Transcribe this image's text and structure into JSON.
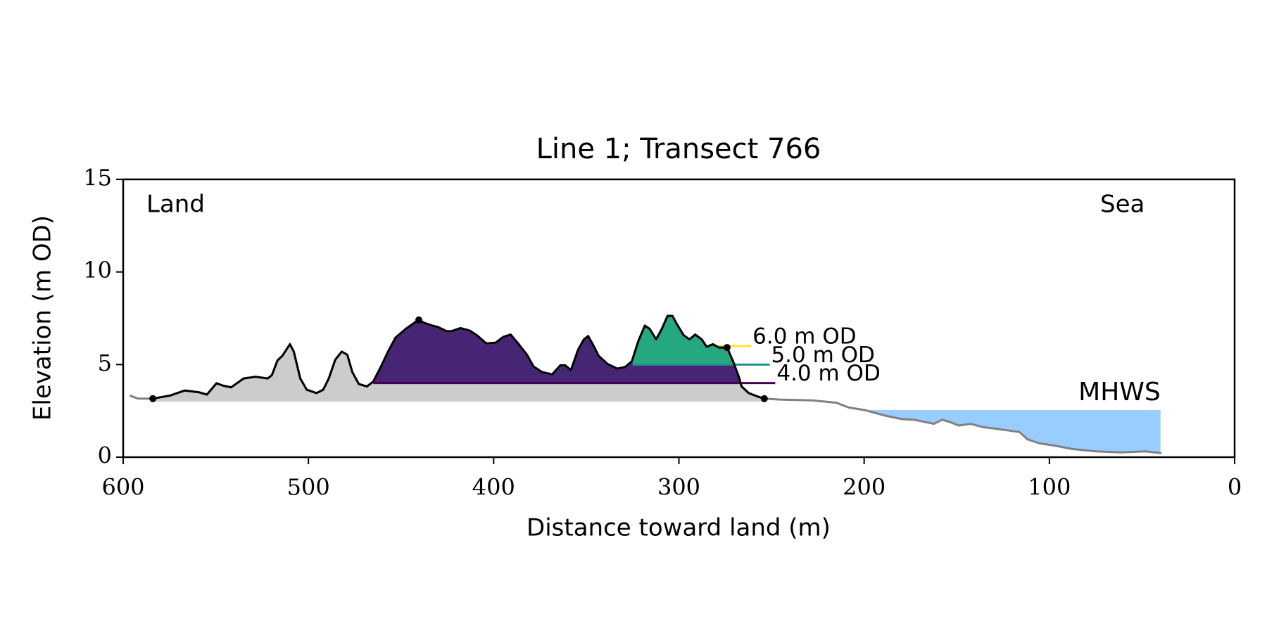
{
  "chart_data": {
    "type": "line",
    "title": "Line 1; Transect 766",
    "xlabel": "Distance toward land (m)",
    "ylabel": "Elevation (m OD)",
    "annotations": [
      "Land",
      "Sea"
    ],
    "xlim": [
      600,
      0
    ],
    "xticks": [
      600,
      500,
      400,
      300,
      200,
      100,
      0
    ],
    "ylim": [
      0,
      15
    ],
    "yticks": [
      0,
      5,
      10,
      15
    ],
    "color": "#808080",
    "highlight_color": "#000000",
    "x": [
      596.5,
      592,
      584,
      574.6,
      566.7,
      559,
      554.8,
      549.6,
      546,
      541.7,
      535,
      528.5,
      522,
      519.7,
      516.7,
      514,
      510,
      507.9,
      504.4,
      500.9,
      495.6,
      492,
      489,
      485.5,
      482,
      479,
      476.3,
      472.8,
      468.4,
      465,
      460.5,
      457,
      453,
      447.4,
      443,
      440.4,
      437.3,
      433,
      430,
      425.4,
      422.8,
      418,
      413,
      409,
      404,
      399,
      394.7,
      390.8,
      386.8,
      382,
      378.5,
      374,
      368.4,
      364,
      361.4,
      358.3,
      354.4,
      351.3,
      349,
      346.5,
      343.4,
      338.6,
      333.3,
      329,
      325.4,
      321.9,
      318.4,
      315.8,
      312.3,
      309.2,
      306.1,
      303.5,
      300.9,
      297.4,
      294.3,
      291.2,
      287.7,
      285,
      281.6,
      278.5,
      274,
      270.6,
      267.5,
      266.2,
      262.3,
      257.9,
      253.9,
      245.6,
      228,
      215,
      208.3,
      199.6,
      188.6,
      179.8,
      173.2,
      166.7,
      162.3,
      157.9,
      153.5,
      149,
      142.5,
      135.9,
      129.3,
      122.8,
      116.2,
      111.8,
      105.3,
      96.5,
      87.7,
      74.6,
      61.4,
      48.2,
      39.5
    ],
    "values": [
      3.33,
      3.16,
      3.16,
      3.33,
      3.6,
      3.5,
      3.38,
      3.99,
      3.86,
      3.77,
      4.25,
      4.34,
      4.25,
      4.43,
      5.22,
      5.48,
      6.1,
      5.7,
      4.25,
      3.64,
      3.46,
      3.64,
      4.25,
      5.26,
      5.7,
      5.53,
      4.6,
      3.95,
      3.82,
      4.08,
      4.96,
      5.7,
      6.45,
      6.93,
      7.24,
      7.41,
      7.24,
      7.1,
      7.02,
      6.8,
      6.8,
      6.97,
      6.84,
      6.58,
      6.14,
      6.18,
      6.5,
      6.62,
      6.14,
      5.53,
      4.9,
      4.6,
      4.47,
      4.96,
      4.96,
      4.7,
      5.8,
      6.36,
      6.54,
      6.1,
      5.48,
      5.04,
      4.78,
      4.87,
      5.18,
      6.27,
      7.1,
      6.93,
      6.36,
      6.93,
      7.63,
      7.63,
      7.15,
      6.58,
      6.36,
      6.62,
      6.36,
      5.96,
      6.1,
      5.92,
      5.92,
      5.13,
      4.3,
      3.82,
      3.46,
      3.29,
      3.16,
      3.11,
      3.07,
      2.94,
      2.68,
      2.54,
      2.24,
      2.06,
      2.02,
      1.89,
      1.8,
      2.02,
      1.89,
      1.71,
      1.8,
      1.62,
      1.54,
      1.45,
      1.36,
      0.96,
      0.75,
      0.61,
      0.44,
      0.31,
      0.26,
      0.31,
      0.22
    ],
    "markers": {
      "x": [
        584,
        440.4,
        274,
        253.9
      ],
      "values": [
        3.16,
        7.41,
        5.92,
        3.16
      ]
    },
    "base": 3,
    "base_color": "#cccccc",
    "levels": [
      {
        "name": "6.0 m OD",
        "value": 6,
        "x": [
          280,
          261
        ],
        "color": "#fde725",
        "fill": "#fde725"
      },
      {
        "name": "5.0 m OD",
        "value": 5,
        "x": [
          325,
          251
        ],
        "color": "#21918c",
        "fill": "#25a782"
      },
      {
        "name": "4.0 m OD",
        "value": 4,
        "x": [
          465,
          248
        ],
        "color": "#440154",
        "fill": "#472575"
      }
    ],
    "mhws": {
      "name": "MHWS",
      "value": 2.55,
      "x": [
        200,
        40
      ],
      "color": "#99ccff",
      "label_color": "#6699cc"
    }
  }
}
